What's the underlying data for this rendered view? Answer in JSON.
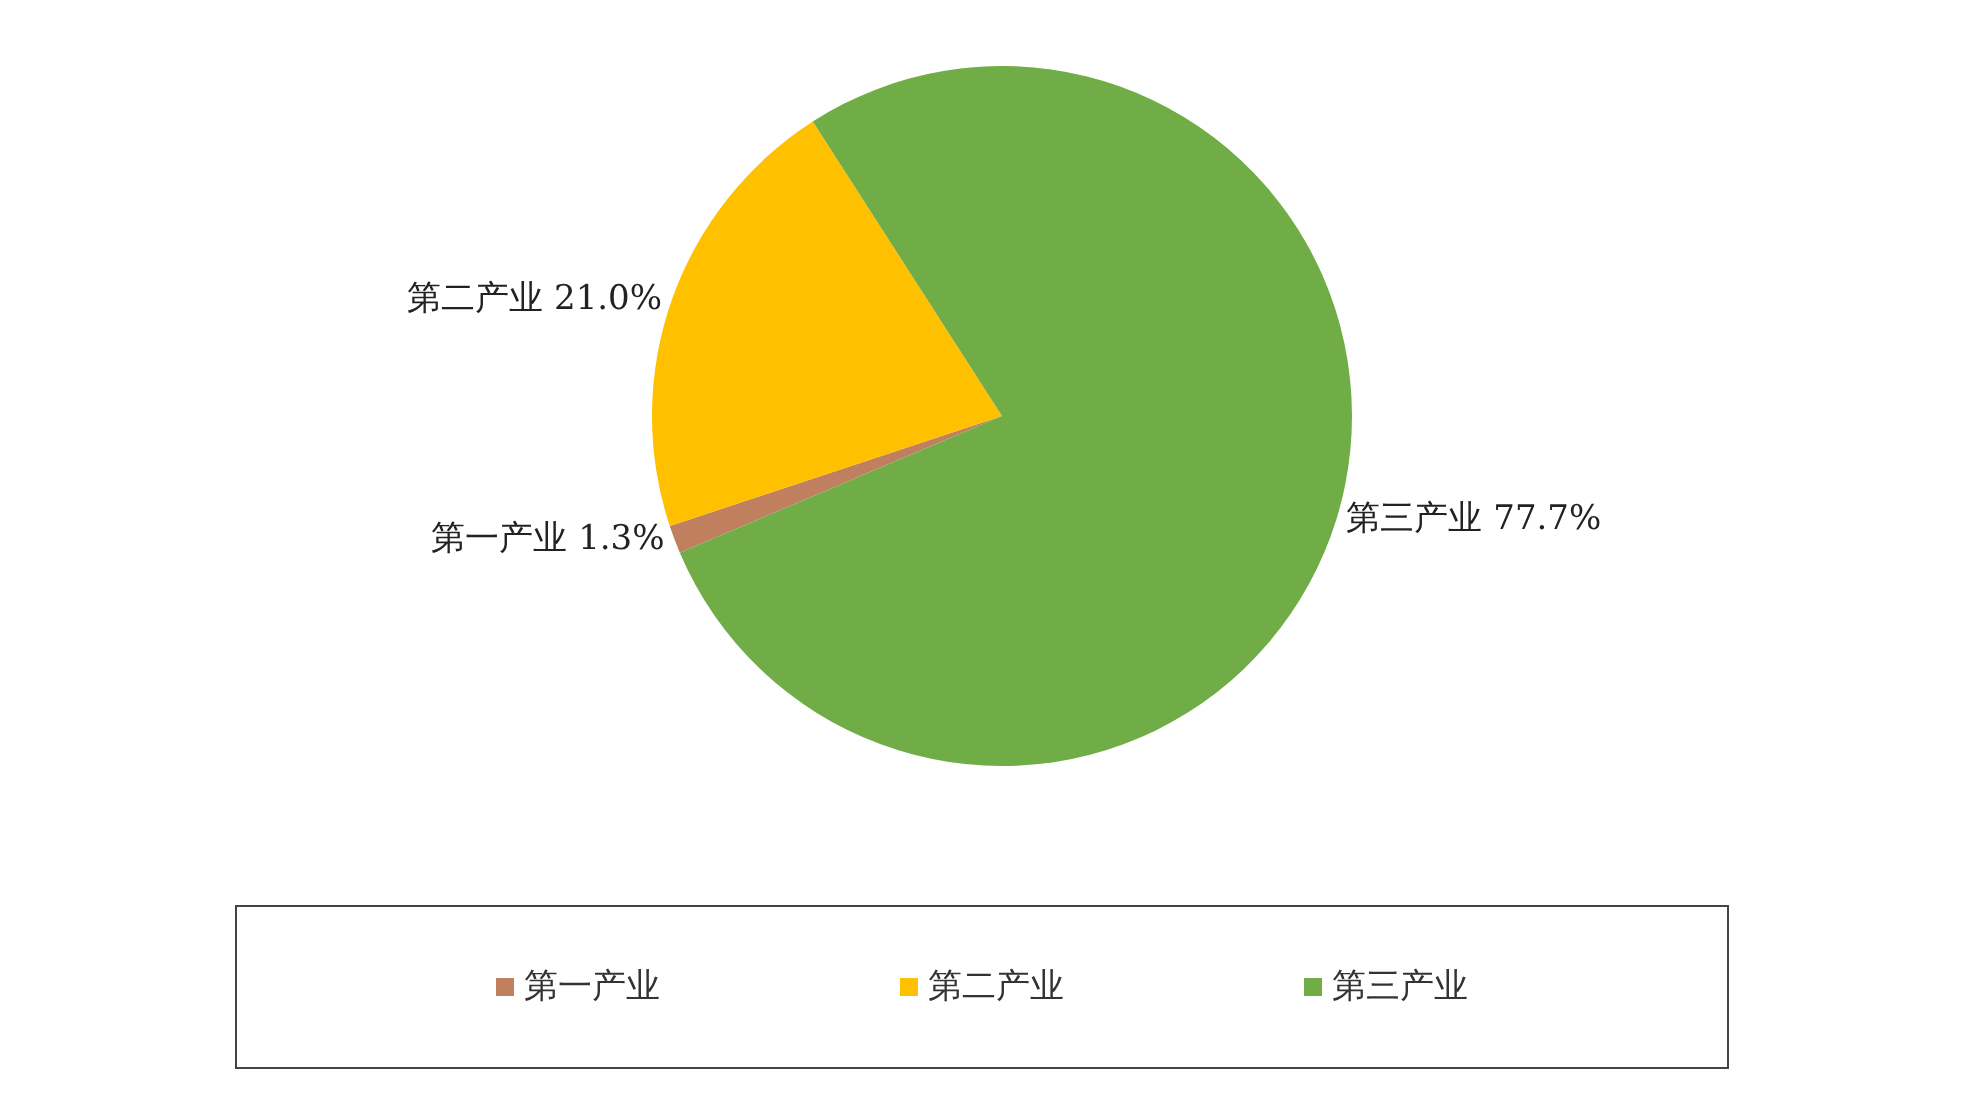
{
  "chart_data": {
    "type": "pie",
    "categories": [
      "第一产业",
      "第二产业",
      "第三产业"
    ],
    "values": [
      1.3,
      21.0,
      77.7
    ],
    "value_labels": [
      "1.3%",
      "21.0%",
      "77.7%"
    ],
    "colors": [
      "#c0805f",
      "#ffc000",
      "#70ad47"
    ],
    "legend": "bottom"
  }
}
